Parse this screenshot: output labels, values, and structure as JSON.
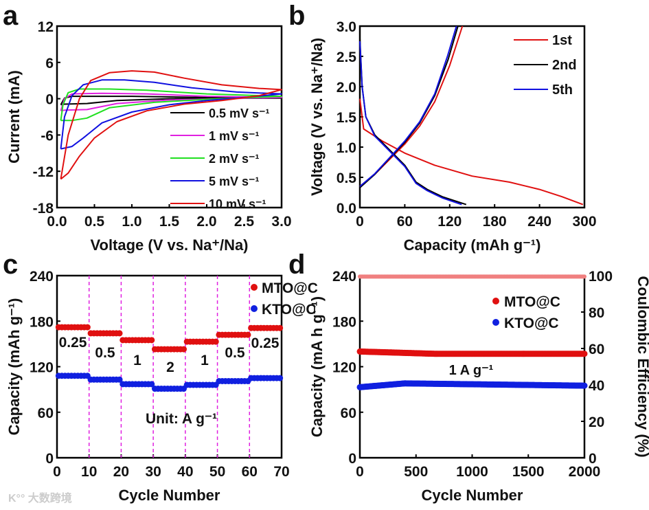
{
  "chart_data": [
    {
      "panel": "a",
      "type": "line",
      "title": "",
      "xlabel": "Voltage (V vs. Na⁺/Na)",
      "ylabel": "Current (mA)",
      "xlim": [
        0,
        3
      ],
      "ylim": [
        -18,
        12
      ],
      "xticks": [
        "0.0",
        "0.5",
        "1.0",
        "1.5",
        "2.0",
        "2.5",
        "3.0"
      ],
      "yticks": [
        "-18",
        "-12",
        "-6",
        "0",
        "6",
        "12"
      ],
      "legend": "bottom-right",
      "series": [
        {
          "name": "0.5 mV s⁻¹",
          "color": "#000000",
          "points": [
            [
              0.05,
              -1
            ],
            [
              0.1,
              0.1
            ],
            [
              0.2,
              0.4
            ],
            [
              1,
              0.4
            ],
            [
              2,
              0.2
            ],
            [
              3,
              0.1
            ],
            [
              1.5,
              0
            ],
            [
              0.8,
              -0.3
            ],
            [
              0.4,
              -0.8
            ],
            [
              0.1,
              -0.9
            ],
            [
              0.05,
              -1
            ]
          ]
        },
        {
          "name": "1 mV s⁻¹",
          "color": "#e020e0",
          "points": [
            [
              0.05,
              -2
            ],
            [
              0.1,
              0
            ],
            [
              0.2,
              0.8
            ],
            [
              0.6,
              0.9
            ],
            [
              1.2,
              0.8
            ],
            [
              2,
              0.4
            ],
            [
              3,
              0.2
            ],
            [
              1.5,
              -0.2
            ],
            [
              0.8,
              -0.8
            ],
            [
              0.4,
              -1.8
            ],
            [
              0.1,
              -1.9
            ],
            [
              0.05,
              -2
            ]
          ]
        },
        {
          "name": "2 mV s⁻¹",
          "color": "#20e020",
          "points": [
            [
              0.05,
              -3.6
            ],
            [
              0.08,
              -1
            ],
            [
              0.15,
              1
            ],
            [
              0.3,
              1.6
            ],
            [
              0.7,
              1.6
            ],
            [
              1.2,
              1.4
            ],
            [
              2,
              0.8
            ],
            [
              3,
              0.4
            ],
            [
              2,
              -0.1
            ],
            [
              1.3,
              -0.6
            ],
            [
              0.7,
              -1.5
            ],
            [
              0.4,
              -3.2
            ],
            [
              0.2,
              -3.6
            ],
            [
              0.05,
              -3.6
            ]
          ]
        },
        {
          "name": "5 mV s⁻¹",
          "color": "#1010e0",
          "points": [
            [
              0.05,
              -8.3
            ],
            [
              0.1,
              -3
            ],
            [
              0.2,
              0.5
            ],
            [
              0.35,
              2.3
            ],
            [
              0.6,
              3.1
            ],
            [
              0.9,
              3.1
            ],
            [
              1.3,
              2.7
            ],
            [
              1.8,
              1.8
            ],
            [
              2.4,
              1.1
            ],
            [
              3,
              0.8
            ],
            [
              2.5,
              0.2
            ],
            [
              2,
              -0.3
            ],
            [
              1.5,
              -1
            ],
            [
              1,
              -2.2
            ],
            [
              0.6,
              -4
            ],
            [
              0.35,
              -6.5
            ],
            [
              0.2,
              -7.9
            ],
            [
              0.05,
              -8.3
            ]
          ]
        },
        {
          "name": "10 mV s⁻¹",
          "color": "#e01010",
          "points": [
            [
              0.05,
              -13.3
            ],
            [
              0.15,
              -6
            ],
            [
              0.3,
              0
            ],
            [
              0.45,
              3
            ],
            [
              0.7,
              4.3
            ],
            [
              1.0,
              4.6
            ],
            [
              1.3,
              4.4
            ],
            [
              1.7,
              3.4
            ],
            [
              2.2,
              2.3
            ],
            [
              2.7,
              1.7
            ],
            [
              3,
              1.5
            ],
            [
              2.7,
              0.5
            ],
            [
              2.2,
              -0.3
            ],
            [
              1.7,
              -0.9
            ],
            [
              1.2,
              -2
            ],
            [
              0.8,
              -3.8
            ],
            [
              0.5,
              -6.5
            ],
            [
              0.3,
              -9.5
            ],
            [
              0.15,
              -12.3
            ],
            [
              0.05,
              -13.3
            ]
          ]
        }
      ]
    },
    {
      "panel": "b",
      "type": "line",
      "xlabel": "Capacity (mAh g⁻¹)",
      "ylabel": "Voltage (V vs. Na⁺/Na)",
      "xlim": [
        0,
        300
      ],
      "ylim": [
        0,
        3
      ],
      "xticks": [
        "0",
        "60",
        "120",
        "180",
        "240",
        "300"
      ],
      "yticks": [
        "0.0",
        "0.5",
        "1.0",
        "1.5",
        "2.0",
        "2.5",
        "3.0"
      ],
      "legend": "top-right",
      "series": [
        {
          "name": "1st",
          "color": "#e01010",
          "curves": [
            [
              [
                0,
                1.8
              ],
              [
                5,
                1.3
              ],
              [
                30,
                1.1
              ],
              [
                60,
                0.9
              ],
              [
                100,
                0.7
              ],
              [
                150,
                0.52
              ],
              [
                200,
                0.42
              ],
              [
                240,
                0.3
              ],
              [
                270,
                0.18
              ],
              [
                298,
                0.05
              ]
            ],
            [
              [
                0,
                0.35
              ],
              [
                20,
                0.55
              ],
              [
                40,
                0.8
              ],
              [
                60,
                1.05
              ],
              [
                80,
                1.35
              ],
              [
                100,
                1.75
              ],
              [
                120,
                2.35
              ],
              [
                137,
                3.0
              ]
            ]
          ]
        },
        {
          "name": "2nd",
          "color": "#000000",
          "curves": [
            [
              [
                0,
                2.8
              ],
              [
                3,
                2.0
              ],
              [
                8,
                1.5
              ],
              [
                20,
                1.2
              ],
              [
                40,
                0.95
              ],
              [
                60,
                0.7
              ],
              [
                75,
                0.42
              ],
              [
                90,
                0.3
              ],
              [
                110,
                0.18
              ],
              [
                142,
                0.05
              ]
            ],
            [
              [
                0,
                0.33
              ],
              [
                20,
                0.55
              ],
              [
                40,
                0.82
              ],
              [
                60,
                1.08
              ],
              [
                80,
                1.4
              ],
              [
                100,
                1.85
              ],
              [
                118,
                2.45
              ],
              [
                131,
                3.0
              ]
            ]
          ]
        },
        {
          "name": "5th",
          "color": "#1010e0",
          "curves": [
            [
              [
                0,
                2.75
              ],
              [
                3,
                2.0
              ],
              [
                8,
                1.5
              ],
              [
                20,
                1.18
              ],
              [
                40,
                0.93
              ],
              [
                60,
                0.68
              ],
              [
                75,
                0.4
              ],
              [
                90,
                0.28
              ],
              [
                110,
                0.16
              ],
              [
                136,
                0.05
              ]
            ],
            [
              [
                0,
                0.35
              ],
              [
                20,
                0.56
              ],
              [
                40,
                0.83
              ],
              [
                60,
                1.1
              ],
              [
                80,
                1.42
              ],
              [
                100,
                1.88
              ],
              [
                117,
                2.5
              ],
              [
                129,
                3.0
              ]
            ]
          ]
        }
      ]
    },
    {
      "panel": "c",
      "type": "scatter",
      "xlabel": "Cycle Number",
      "ylabel": "Capacity (mAh g⁻¹)",
      "xlim": [
        0,
        70
      ],
      "ylim": [
        0,
        240
      ],
      "xticks": [
        "0",
        "10",
        "20",
        "30",
        "40",
        "50",
        "60",
        "70"
      ],
      "yticks": [
        "0",
        "60",
        "120",
        "180",
        "240"
      ],
      "legend": "top-right",
      "annotation": "Unit: A g⁻¹",
      "rates": [
        "0.25",
        "0.5",
        "1",
        "2",
        "1",
        "0.5",
        "0.25"
      ],
      "series": [
        {
          "name": "MTO@C",
          "color": "#e01010",
          "step_values": [
            172,
            164,
            155,
            143,
            153,
            162,
            171
          ]
        },
        {
          "name": "KTO@C",
          "color": "#1020e0",
          "step_values": [
            108,
            103,
            97,
            91,
            96,
            101,
            105
          ]
        }
      ]
    },
    {
      "panel": "d",
      "type": "scatter",
      "xlabel": "Cycle Number",
      "ylabel": "Capacity (mA h g⁻¹)",
      "y2label": "Coulombic Efficiency (%)",
      "xlim": [
        0,
        2000
      ],
      "ylim": [
        0,
        240
      ],
      "y2lim": [
        0,
        100
      ],
      "xticks": [
        "0",
        "500",
        "1000",
        "1500",
        "2000"
      ],
      "yticks": [
        "0",
        "60",
        "120",
        "180",
        "240"
      ],
      "y2ticks": [
        "0",
        "20",
        "40",
        "60",
        "80",
        "100"
      ],
      "legend": "top-right",
      "annotation": "1 A g⁻¹",
      "series": [
        {
          "name": "MTO@C",
          "color": "#e01010",
          "start": 140,
          "end": 137
        },
        {
          "name": "KTO@C",
          "color": "#1020e0",
          "start": 93,
          "mid": 98,
          "end": 95
        },
        {
          "name": "Coulombic Efficiency",
          "color": "#f08080",
          "value": 99.5
        }
      ]
    }
  ],
  "panel_labels": [
    "a",
    "b",
    "c",
    "d"
  ],
  "watermark": "大数跨境"
}
